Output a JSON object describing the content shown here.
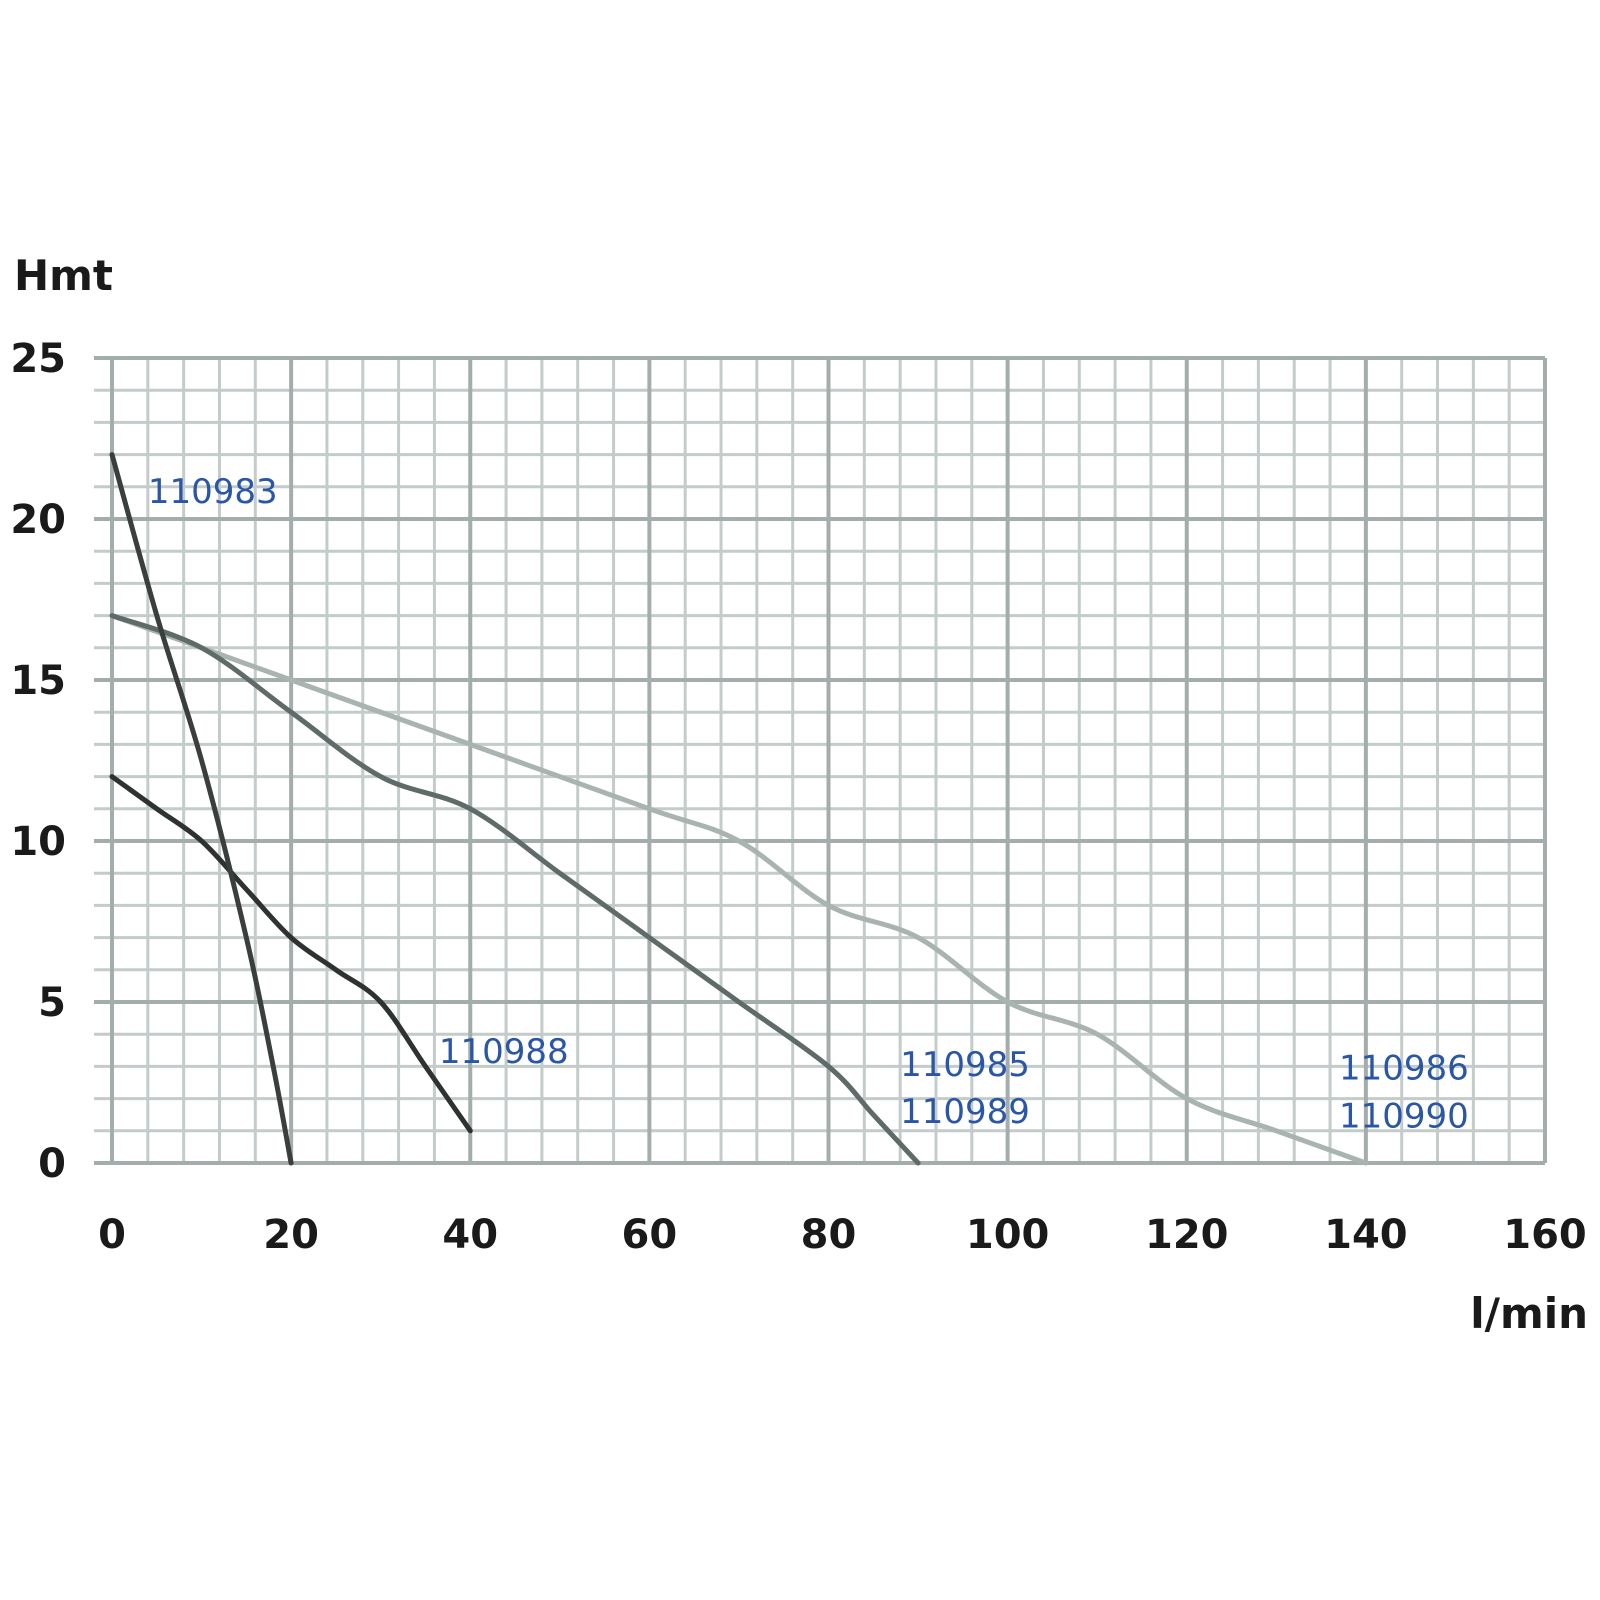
{
  "chart_data": {
    "type": "line",
    "ylabel": "Hmt",
    "xlabel": "l/min",
    "xlim": [
      0,
      160
    ],
    "ylim": [
      0,
      25
    ],
    "x_ticks": [
      "0",
      "20",
      "40",
      "60",
      "80",
      "100",
      "120",
      "140",
      "160"
    ],
    "y_ticks": [
      "0",
      "5",
      "10",
      "15",
      "20",
      "25"
    ],
    "x_minor_step": 4,
    "y_minor_step": 1,
    "grid": true,
    "label_color": "#2a56a8",
    "series": [
      {
        "name": "110983",
        "color": "#3a3f3d",
        "points": [
          [
            0,
            22
          ],
          [
            5,
            17
          ],
          [
            10,
            12.5
          ],
          [
            15,
            7
          ],
          [
            18,
            3
          ],
          [
            20,
            0
          ]
        ],
        "labels": [
          {
            "text": "110983",
            "x": 4,
            "y": 20.5
          }
        ]
      },
      {
        "name": "110988",
        "color": "#2e3230",
        "points": [
          [
            0,
            12
          ],
          [
            5,
            11
          ],
          [
            10,
            10
          ],
          [
            15,
            8.5
          ],
          [
            20,
            7
          ],
          [
            25,
            6
          ],
          [
            30,
            5
          ],
          [
            35,
            3
          ],
          [
            40,
            1
          ]
        ],
        "labels": [
          {
            "text": "110988",
            "x": 36.5,
            "y": 3.1
          }
        ]
      },
      {
        "name": "110985 110989",
        "color": "#5f6b68",
        "points": [
          [
            0,
            17
          ],
          [
            10,
            16
          ],
          [
            20,
            14
          ],
          [
            30,
            12
          ],
          [
            40,
            11
          ],
          [
            50,
            9
          ],
          [
            60,
            7
          ],
          [
            70,
            5
          ],
          [
            80,
            3
          ],
          [
            85,
            1.5
          ],
          [
            90,
            0
          ]
        ],
        "labels": [
          {
            "text": "110985",
            "x": 88,
            "y": 2.7
          },
          {
            "text": "110989",
            "x": 88,
            "y": 1.25
          }
        ]
      },
      {
        "name": "110986 110990",
        "color": "#a9b4b1",
        "points": [
          [
            0,
            17
          ],
          [
            20,
            15
          ],
          [
            40,
            13
          ],
          [
            60,
            11
          ],
          [
            70,
            10
          ],
          [
            80,
            8
          ],
          [
            90,
            7
          ],
          [
            100,
            5
          ],
          [
            110,
            4
          ],
          [
            120,
            2
          ],
          [
            130,
            1
          ],
          [
            140,
            0
          ]
        ],
        "labels": [
          {
            "text": "110986",
            "x": 137,
            "y": 2.6
          },
          {
            "text": "110990",
            "x": 137,
            "y": 1.1
          }
        ]
      }
    ]
  }
}
